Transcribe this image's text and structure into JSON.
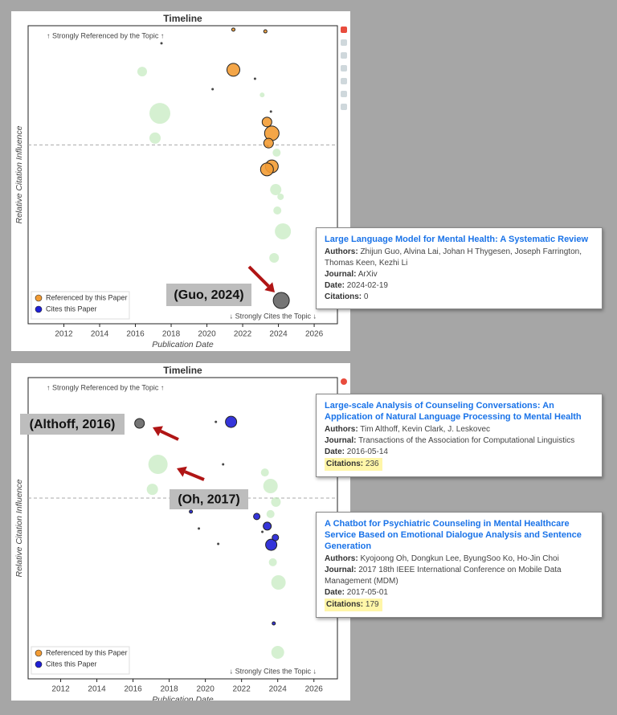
{
  "chart_data": [
    {
      "type": "scatter",
      "title": "Timeline",
      "xlabel": "Publication Date",
      "ylabel": "Relative Citation Influence",
      "xlim": [
        2010,
        2027.3
      ],
      "ylim": [
        0,
        10
      ],
      "xticks": [
        2012,
        2014,
        2016,
        2018,
        2020,
        2022,
        2024,
        2026
      ],
      "hline": 6,
      "legend": "lower left",
      "annotations": [
        "↑ Strongly Referenced by the Topic ↑",
        "↓ Strongly Cites the Topic ↓"
      ],
      "callouts": [
        "(Guo, 2024)"
      ],
      "series": [
        {
          "color": "#b9e6b3",
          "x": [
            2016.38,
            2017.37,
            2017.1,
            2023.9,
            2023.85,
            2024.25,
            2023.76,
            2023.94,
            2024.12,
            2023.09
          ],
          "y": [
            8.46,
            7.06,
            6.23,
            5.74,
            4.5,
            3.1,
            2.21,
            3.8,
            4.26,
            7.68
          ],
          "sizes": [
            6,
            13,
            7,
            5,
            7,
            10,
            6,
            5,
            4,
            3
          ]
        },
        {
          "color": "#333333",
          "x": [
            2017.46,
            2020.32,
            2022.69,
            2023.58,
            2023.4
          ],
          "y": [
            9.41,
            7.87,
            8.22,
            7.12,
            5.96
          ],
          "sizes": [
            1.5,
            1.5,
            1.5,
            1.5,
            1.5
          ]
        },
        {
          "name": "Referenced by this Paper",
          "color": "#f39c34",
          "x": [
            2021.48,
            2023.27,
            2021.48,
            2023.36,
            2023.63,
            2023.45,
            2023.63,
            2023.36
          ],
          "y": [
            9.87,
            9.81,
            8.52,
            6.77,
            6.39,
            6.06,
            5.28,
            5.18
          ],
          "sizes": [
            2,
            2,
            8,
            6,
            9,
            6,
            8,
            8
          ]
        },
        {
          "name": "Cites this Paper",
          "color": "#1f1fd6",
          "x": [],
          "y": [],
          "sizes": []
        },
        {
          "color": "#666666",
          "x": [
            2024.16
          ],
          "y": [
            0.78
          ],
          "sizes": [
            10
          ]
        }
      ],
      "tooltips": [
        {
          "title": "Large Language Model for Mental Health: A Systematic Review",
          "fields": [
            {
              "label": "Authors:",
              "value": "Zhijun Guo, Alvina Lai, Johan H Thygesen, Joseph Farrington, Thomas Keen, Kezhi Li"
            },
            {
              "label": "Journal:",
              "value": "ArXiv"
            },
            {
              "label": "Date:",
              "value": "2024-02-19"
            },
            {
              "label": "Citations:",
              "value": 0
            }
          ]
        }
      ]
    },
    {
      "type": "scatter",
      "title": "Timeline",
      "xlabel": "Publication Date",
      "ylabel": "Relative Citation Influence",
      "xlim": [
        2010.2,
        2027.3
      ],
      "ylim": [
        0,
        10
      ],
      "xticks": [
        2012,
        2014,
        2016,
        2018,
        2020,
        2022,
        2024,
        2026
      ],
      "hline": 6,
      "legend": "lower left",
      "annotations": [
        "↑ Strongly Referenced by the Topic ↑",
        "↓ Strongly Cites the Topic ↓"
      ],
      "callouts": [
        "(Althoff, 2016)",
        "(Oh, 2017)"
      ],
      "series": [
        {
          "color": "#b9e6b3",
          "x": [
            2017.38,
            2017.07,
            2023.6,
            2024.04,
            2024.0,
            2023.73,
            2023.9,
            2023.29,
            2023.6
          ],
          "y": [
            7.12,
            6.29,
            6.4,
            3.2,
            0.88,
            3.87,
            5.87,
            6.85,
            5.47
          ],
          "sizes": [
            12,
            7,
            9,
            9,
            8,
            5,
            6,
            5,
            5
          ]
        },
        {
          "color": "#333333",
          "x": [
            2020.58,
            2020.98,
            2019.64,
            2020.71,
            2023.15
          ],
          "y": [
            8.53,
            7.12,
            4.99,
            4.48,
            4.88
          ],
          "sizes": [
            1.5,
            1.5,
            1.5,
            1.5,
            1.5
          ]
        },
        {
          "name": "Referenced by this Paper",
          "color": "#f39c34",
          "x": [],
          "y": [],
          "sizes": []
        },
        {
          "name": "Cites this Paper",
          "color": "#1f1fd6",
          "x": [
            2021.42,
            2022.84,
            2023.42,
            2023.64,
            2023.87,
            2019.2,
            2023.78
          ],
          "y": [
            8.53,
            5.39,
            5.07,
            4.45,
            4.69,
            5.55,
            1.84
          ],
          "sizes": [
            7,
            4,
            5,
            7,
            4,
            2,
            2
          ]
        },
        {
          "color": "#666666",
          "x": [
            2016.36
          ],
          "y": [
            8.48
          ],
          "sizes": [
            6
          ]
        }
      ],
      "tooltips": [
        {
          "title": "Large-scale Analysis of Counseling Conversations: An Application of Natural Language Processing to Mental Health",
          "fields": [
            {
              "label": "Authors:",
              "value": "Tim Althoff, Kevin Clark, J. Leskovec"
            },
            {
              "label": "Journal:",
              "value": "Transactions of the Association for Computational Linguistics"
            },
            {
              "label": "Date:",
              "value": "2016-05-14"
            },
            {
              "label": "Citations:",
              "value": 236,
              "highlight": true
            }
          ]
        },
        {
          "title": "A Chatbot for Psychiatric Counseling in Mental Healthcare Service Based on Emotional Dialogue Analysis and Sentence Generation",
          "fields": [
            {
              "label": "Authors:",
              "value": "Kyojoong Oh, Dongkun Lee, ByungSoo Ko, Ho-Jin Choi"
            },
            {
              "label": "Journal:",
              "value": "2017 18th IEEE International Conference on Mobile Data Management (MDM)"
            },
            {
              "label": "Date:",
              "value": "2017-05-01"
            },
            {
              "label": "Citations:",
              "value": 179,
              "highlight": true
            }
          ]
        }
      ]
    }
  ]
}
